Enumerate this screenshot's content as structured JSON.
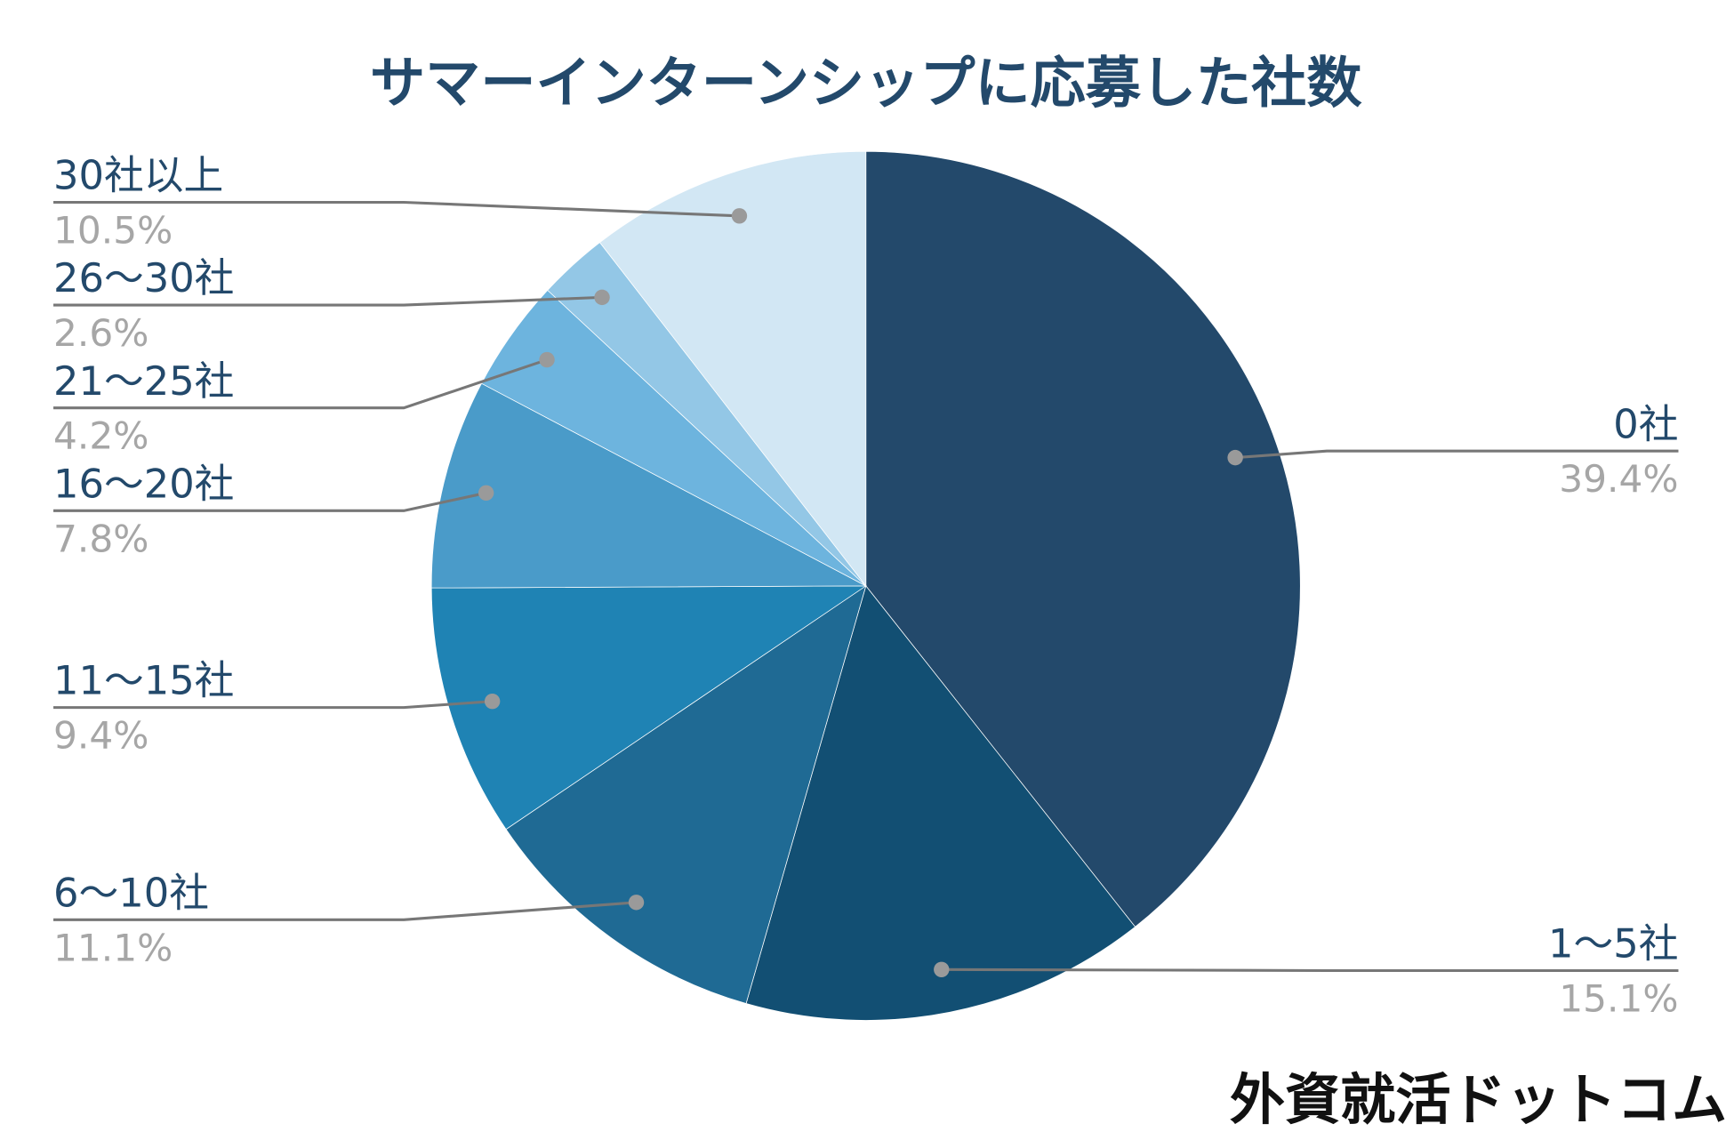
{
  "chart_data": {
    "type": "pie",
    "title": "サマーインターンシップに応募した社数",
    "categories": [
      "0社",
      "1～5社",
      "6～10社",
      "11～15社",
      "16～20社",
      "21～25社",
      "26～30社",
      "30社以上"
    ],
    "values": [
      39.4,
      15.1,
      11.1,
      9.4,
      7.8,
      4.2,
      2.6,
      10.5
    ],
    "value_labels": [
      "39.4%",
      "15.1%",
      "11.1%",
      "9.4%",
      "7.8%",
      "4.2%",
      "2.6%",
      "10.5%"
    ],
    "colors": [
      "#23496b",
      "#124f73",
      "#1f6a94",
      "#1f83b4",
      "#4a9bc9",
      "#6db4de",
      "#93c7e6",
      "#d2e7f4"
    ]
  },
  "watermark": "外資就活ドットコム"
}
